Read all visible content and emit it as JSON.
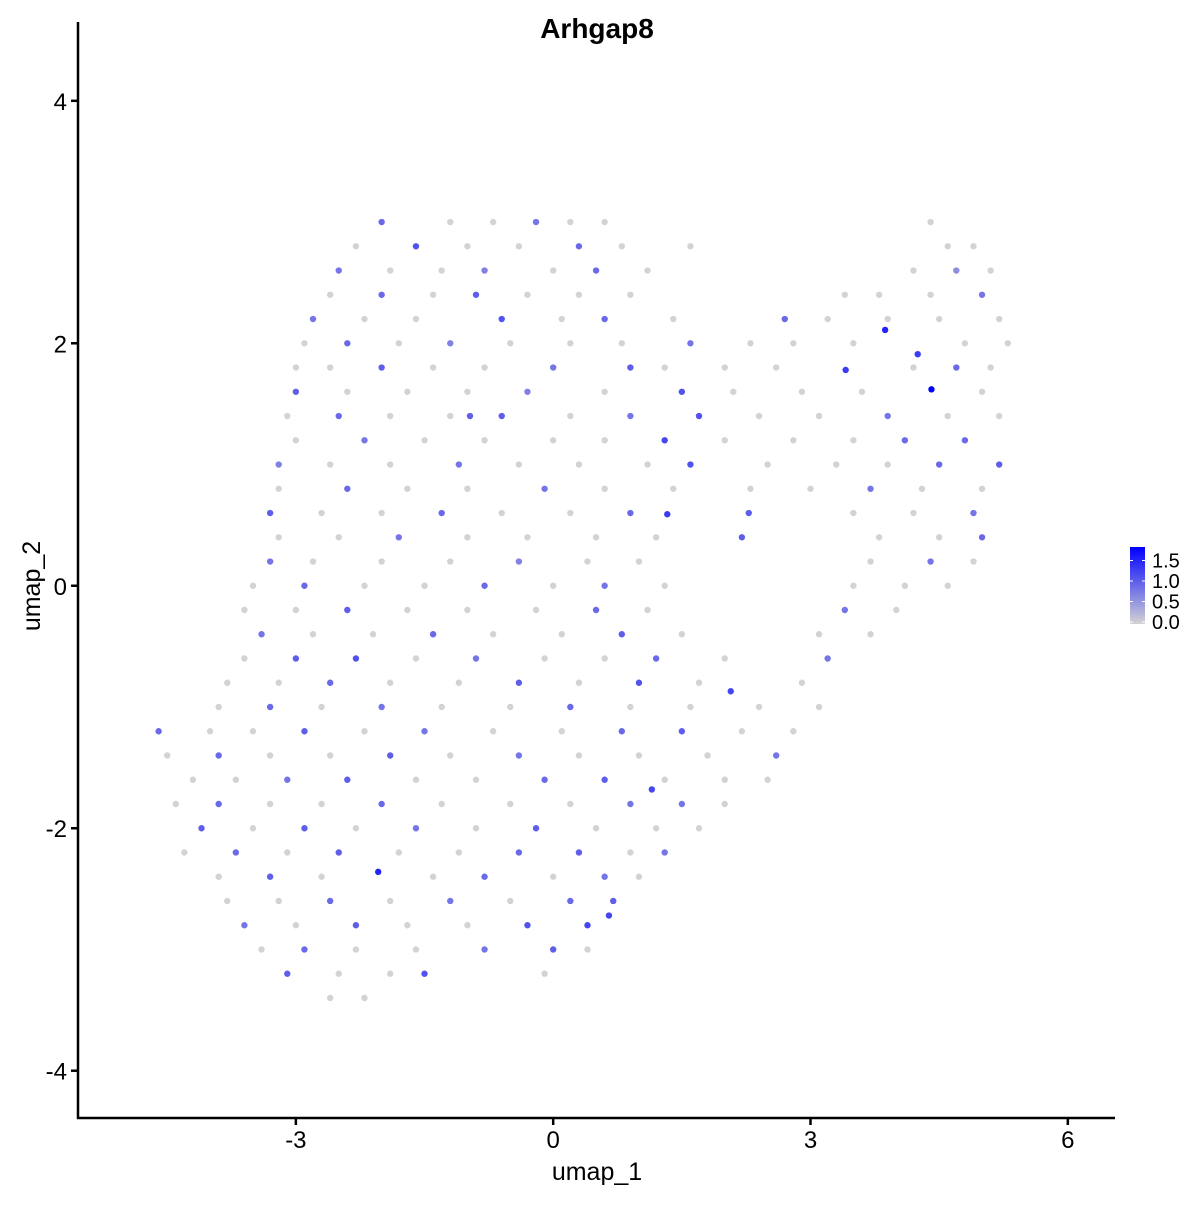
{
  "chart_data": {
    "type": "scatter",
    "title": "Arhgap8",
    "xlabel": "umap_1",
    "ylabel": "umap_2",
    "xlim": [
      -5.54,
      6.55
    ],
    "ylim": [
      -4.39,
      4.65
    ],
    "x_ticks": [
      -3,
      0,
      3,
      6
    ],
    "x_tick_labels": [
      "-3",
      "0",
      "3",
      "6"
    ],
    "y_ticks": [
      -4,
      -2,
      0,
      2,
      4
    ],
    "y_tick_labels": [
      "-4",
      "-2",
      "0",
      "2",
      "4"
    ],
    "grid": false,
    "legend": {
      "placement": "right",
      "type": "colorbar",
      "ticks": [
        0.0,
        0.5,
        1.0,
        1.5
      ],
      "tick_labels": [
        "0.0",
        "0.5",
        "1.0",
        "1.5"
      ],
      "range": [
        0,
        1.8
      ],
      "low_color": "#d3d3d3",
      "high_color": "#0000ff"
    },
    "point_fields": [
      "umap_1",
      "umap_2",
      "expression"
    ],
    "points": [
      [
        -2.0,
        3.0,
        0.9
      ],
      [
        -1.2,
        3.0,
        0
      ],
      [
        -0.7,
        3.0,
        0
      ],
      [
        -0.2,
        3.0,
        0.8
      ],
      [
        0.2,
        3.0,
        0
      ],
      [
        0.6,
        3.0,
        0
      ],
      [
        4.4,
        3.0,
        0
      ],
      [
        -2.3,
        2.8,
        0
      ],
      [
        -1.6,
        2.8,
        1.1
      ],
      [
        -1.0,
        2.8,
        0
      ],
      [
        -0.4,
        2.8,
        0
      ],
      [
        0.3,
        2.8,
        0.9
      ],
      [
        0.8,
        2.8,
        0
      ],
      [
        1.6,
        2.8,
        0
      ],
      [
        4.6,
        2.8,
        0
      ],
      [
        4.9,
        2.8,
        0
      ],
      [
        -2.5,
        2.6,
        0.8
      ],
      [
        -1.9,
        2.6,
        0
      ],
      [
        -1.3,
        2.6,
        0
      ],
      [
        -0.8,
        2.6,
        0.7
      ],
      [
        0.0,
        2.6,
        0
      ],
      [
        0.5,
        2.6,
        0.9
      ],
      [
        1.1,
        2.6,
        0
      ],
      [
        4.2,
        2.6,
        0
      ],
      [
        4.7,
        2.6,
        0.6
      ],
      [
        5.1,
        2.6,
        0
      ],
      [
        -2.6,
        2.4,
        0
      ],
      [
        -2.0,
        2.4,
        0.9
      ],
      [
        -1.4,
        2.4,
        0
      ],
      [
        -0.9,
        2.4,
        1.0
      ],
      [
        -0.3,
        2.4,
        0
      ],
      [
        0.3,
        2.4,
        0
      ],
      [
        0.9,
        2.4,
        0
      ],
      [
        3.4,
        2.4,
        0
      ],
      [
        3.8,
        2.4,
        0
      ],
      [
        4.4,
        2.4,
        0
      ],
      [
        5.0,
        2.4,
        0.8
      ],
      [
        -2.8,
        2.2,
        0.8
      ],
      [
        -2.2,
        2.2,
        0
      ],
      [
        -1.6,
        2.2,
        0
      ],
      [
        -0.6,
        2.2,
        1.1
      ],
      [
        0.1,
        2.2,
        0
      ],
      [
        0.6,
        2.2,
        0.9
      ],
      [
        1.4,
        2.2,
        0
      ],
      [
        2.7,
        2.2,
        0.9
      ],
      [
        3.2,
        2.2,
        0
      ],
      [
        3.9,
        2.2,
        0
      ],
      [
        4.5,
        2.2,
        0
      ],
      [
        5.2,
        2.2,
        0
      ],
      [
        -2.9,
        2.0,
        0
      ],
      [
        -2.4,
        2.0,
        0.9
      ],
      [
        -1.8,
        2.0,
        0
      ],
      [
        -1.2,
        2.0,
        0.7
      ],
      [
        -0.5,
        2.0,
        0
      ],
      [
        0.2,
        2.0,
        0
      ],
      [
        0.8,
        2.0,
        0
      ],
      [
        1.6,
        2.0,
        0.8
      ],
      [
        2.3,
        2.0,
        0
      ],
      [
        2.8,
        2.0,
        0
      ],
      [
        3.5,
        2.0,
        0
      ],
      [
        3.87,
        2.11,
        1.5
      ],
      [
        4.8,
        2.0,
        0
      ],
      [
        5.3,
        2.0,
        0
      ],
      [
        -3.0,
        1.8,
        0
      ],
      [
        -2.6,
        1.8,
        0
      ],
      [
        -2.0,
        1.8,
        1.0
      ],
      [
        -1.4,
        1.8,
        0
      ],
      [
        -0.8,
        1.8,
        0
      ],
      [
        0.0,
        1.8,
        0.8
      ],
      [
        0.9,
        1.8,
        1.0
      ],
      [
        1.3,
        1.8,
        0
      ],
      [
        2.0,
        1.8,
        0
      ],
      [
        2.6,
        1.8,
        0
      ],
      [
        3.41,
        1.78,
        1.3
      ],
      [
        4.25,
        1.91,
        1.3
      ],
      [
        4.2,
        1.8,
        0
      ],
      [
        4.7,
        1.8,
        0.9
      ],
      [
        5.1,
        1.8,
        0
      ],
      [
        -3.0,
        1.6,
        1.0
      ],
      [
        -2.4,
        1.6,
        0
      ],
      [
        -1.7,
        1.6,
        0
      ],
      [
        -1.0,
        1.6,
        0
      ],
      [
        -0.3,
        1.6,
        0.7
      ],
      [
        0.6,
        1.6,
        0
      ],
      [
        1.5,
        1.6,
        1.1
      ],
      [
        2.1,
        1.6,
        0
      ],
      [
        2.9,
        1.6,
        0
      ],
      [
        3.6,
        1.6,
        0
      ],
      [
        4.41,
        1.62,
        1.8
      ],
      [
        5.0,
        1.6,
        0
      ],
      [
        -3.1,
        1.4,
        0
      ],
      [
        -2.5,
        1.4,
        0.9
      ],
      [
        -1.9,
        1.4,
        0
      ],
      [
        -1.2,
        1.4,
        0
      ],
      [
        -0.97,
        1.4,
        1.0
      ],
      [
        -0.6,
        1.4,
        1.0
      ],
      [
        0.2,
        1.4,
        0
      ],
      [
        0.9,
        1.4,
        0.8
      ],
      [
        1.7,
        1.4,
        1.1
      ],
      [
        2.4,
        1.4,
        0
      ],
      [
        3.1,
        1.4,
        0
      ],
      [
        3.9,
        1.4,
        0.8
      ],
      [
        4.6,
        1.4,
        0
      ],
      [
        5.2,
        1.4,
        0
      ],
      [
        -3.0,
        1.2,
        0
      ],
      [
        -2.2,
        1.2,
        0.8
      ],
      [
        -1.5,
        1.2,
        0
      ],
      [
        -0.8,
        1.2,
        0
      ],
      [
        0.0,
        1.2,
        0
      ],
      [
        0.6,
        1.2,
        0
      ],
      [
        1.3,
        1.2,
        1.2
      ],
      [
        2.0,
        1.2,
        0
      ],
      [
        2.8,
        1.2,
        0
      ],
      [
        3.5,
        1.2,
        0
      ],
      [
        4.1,
        1.2,
        0.9
      ],
      [
        4.8,
        1.2,
        0.9
      ],
      [
        -3.2,
        1.0,
        0.7
      ],
      [
        -2.6,
        1.0,
        0
      ],
      [
        -1.9,
        1.0,
        0
      ],
      [
        -1.1,
        1.0,
        0.8
      ],
      [
        -0.4,
        1.0,
        0
      ],
      [
        0.3,
        1.0,
        0
      ],
      [
        1.1,
        1.0,
        0
      ],
      [
        1.6,
        1.0,
        1.1
      ],
      [
        2.5,
        1.0,
        0
      ],
      [
        3.3,
        1.0,
        0
      ],
      [
        3.9,
        1.0,
        0
      ],
      [
        4.5,
        1.0,
        0.9
      ],
      [
        5.2,
        1.0,
        1.0
      ],
      [
        -3.2,
        0.8,
        0
      ],
      [
        -2.4,
        0.8,
        0.9
      ],
      [
        -1.7,
        0.8,
        0
      ],
      [
        -1.0,
        0.8,
        0
      ],
      [
        -0.1,
        0.8,
        0.8
      ],
      [
        0.6,
        0.8,
        0
      ],
      [
        1.4,
        0.8,
        0
      ],
      [
        2.3,
        0.8,
        0
      ],
      [
        3.0,
        0.8,
        0
      ],
      [
        3.7,
        0.8,
        0.8
      ],
      [
        4.3,
        0.8,
        0
      ],
      [
        5.0,
        0.8,
        0
      ],
      [
        -3.3,
        0.6,
        1.0
      ],
      [
        -2.7,
        0.6,
        0
      ],
      [
        -2.0,
        0.6,
        0
      ],
      [
        -1.3,
        0.6,
        0.9
      ],
      [
        -0.6,
        0.6,
        0
      ],
      [
        0.2,
        0.6,
        0
      ],
      [
        0.9,
        0.6,
        0.9
      ],
      [
        1.33,
        0.59,
        1.3
      ],
      [
        2.28,
        0.6,
        1.0
      ],
      [
        3.5,
        0.6,
        0
      ],
      [
        4.2,
        0.6,
        0
      ],
      [
        4.9,
        0.6,
        0.8
      ],
      [
        -3.2,
        0.4,
        0
      ],
      [
        -2.5,
        0.4,
        0
      ],
      [
        -1.8,
        0.4,
        0.8
      ],
      [
        -1.0,
        0.4,
        0
      ],
      [
        -0.3,
        0.4,
        0
      ],
      [
        0.5,
        0.4,
        0
      ],
      [
        1.2,
        0.4,
        0
      ],
      [
        2.2,
        0.4,
        1.0
      ],
      [
        3.8,
        0.4,
        0
      ],
      [
        4.5,
        0.4,
        0
      ],
      [
        5.0,
        0.4,
        0.9
      ],
      [
        -3.3,
        0.2,
        0.8
      ],
      [
        -2.8,
        0.2,
        0
      ],
      [
        -2.0,
        0.2,
        0
      ],
      [
        -1.2,
        0.2,
        0
      ],
      [
        -0.4,
        0.2,
        0.7
      ],
      [
        0.4,
        0.2,
        0
      ],
      [
        1.0,
        0.2,
        0
      ],
      [
        3.7,
        0.2,
        0
      ],
      [
        4.4,
        0.2,
        0.8
      ],
      [
        4.9,
        0.2,
        0
      ],
      [
        -3.5,
        0.0,
        0
      ],
      [
        -2.9,
        0.0,
        0.9
      ],
      [
        -2.2,
        0.0,
        0
      ],
      [
        -1.5,
        0.0,
        0
      ],
      [
        -0.8,
        0.0,
        0.9
      ],
      [
        0.0,
        0.0,
        0
      ],
      [
        0.6,
        0.0,
        0.8
      ],
      [
        1.3,
        0.0,
        0
      ],
      [
        3.5,
        0.0,
        0
      ],
      [
        4.1,
        0.0,
        0
      ],
      [
        4.6,
        0.0,
        0
      ],
      [
        -3.6,
        -0.2,
        0
      ],
      [
        -3.0,
        -0.2,
        0
      ],
      [
        -2.4,
        -0.2,
        1.0
      ],
      [
        -1.7,
        -0.2,
        0
      ],
      [
        -1.0,
        -0.2,
        0
      ],
      [
        -0.2,
        -0.2,
        0
      ],
      [
        0.5,
        -0.2,
        0.9
      ],
      [
        1.1,
        -0.2,
        0
      ],
      [
        3.4,
        -0.2,
        0.8
      ],
      [
        4.0,
        -0.2,
        0
      ],
      [
        -3.4,
        -0.4,
        0.8
      ],
      [
        -2.8,
        -0.4,
        0
      ],
      [
        -2.1,
        -0.4,
        0
      ],
      [
        -1.4,
        -0.4,
        0.9
      ],
      [
        -0.7,
        -0.4,
        0
      ],
      [
        0.1,
        -0.4,
        0
      ],
      [
        0.8,
        -0.4,
        1.0
      ],
      [
        1.5,
        -0.4,
        0
      ],
      [
        3.1,
        -0.4,
        0
      ],
      [
        3.7,
        -0.4,
        0
      ],
      [
        -3.6,
        -0.6,
        0
      ],
      [
        -3.0,
        -0.6,
        1.0
      ],
      [
        -2.3,
        -0.6,
        1.1
      ],
      [
        -1.6,
        -0.6,
        0
      ],
      [
        -0.9,
        -0.6,
        0.8
      ],
      [
        -0.1,
        -0.6,
        0
      ],
      [
        0.6,
        -0.6,
        0
      ],
      [
        1.2,
        -0.6,
        0.9
      ],
      [
        2.0,
        -0.6,
        0
      ],
      [
        3.2,
        -0.6,
        0.8
      ],
      [
        -3.8,
        -0.8,
        0
      ],
      [
        -3.2,
        -0.8,
        0
      ],
      [
        -2.6,
        -0.8,
        0.9
      ],
      [
        -1.9,
        -0.8,
        0
      ],
      [
        -1.1,
        -0.8,
        0
      ],
      [
        -0.4,
        -0.8,
        1.0
      ],
      [
        0.3,
        -0.8,
        0
      ],
      [
        1.0,
        -0.8,
        1.1
      ],
      [
        1.7,
        -0.8,
        0
      ],
      [
        2.07,
        -0.87,
        1.2
      ],
      [
        2.9,
        -0.8,
        0
      ],
      [
        -3.9,
        -1.0,
        0
      ],
      [
        -3.3,
        -1.0,
        0.9
      ],
      [
        -2.7,
        -1.0,
        0
      ],
      [
        -2.0,
        -1.0,
        0.8
      ],
      [
        -1.3,
        -1.0,
        0
      ],
      [
        -0.5,
        -1.0,
        0
      ],
      [
        0.2,
        -1.0,
        0.9
      ],
      [
        0.9,
        -1.0,
        0
      ],
      [
        1.6,
        -1.0,
        0
      ],
      [
        2.4,
        -1.0,
        0
      ],
      [
        3.1,
        -1.0,
        0
      ],
      [
        -4.6,
        -1.2,
        0.9
      ],
      [
        -4.0,
        -1.2,
        0
      ],
      [
        -3.5,
        -1.2,
        0
      ],
      [
        -2.9,
        -1.2,
        1.0
      ],
      [
        -2.2,
        -1.2,
        0
      ],
      [
        -1.5,
        -1.2,
        0.8
      ],
      [
        -0.7,
        -1.2,
        0
      ],
      [
        0.1,
        -1.2,
        0
      ],
      [
        0.8,
        -1.2,
        0.9
      ],
      [
        1.5,
        -1.2,
        1.0
      ],
      [
        2.2,
        -1.2,
        0
      ],
      [
        2.8,
        -1.2,
        0
      ],
      [
        -4.5,
        -1.4,
        0
      ],
      [
        -3.9,
        -1.4,
        0.9
      ],
      [
        -3.3,
        -1.4,
        0
      ],
      [
        -2.6,
        -1.4,
        0
      ],
      [
        -1.9,
        -1.4,
        1.0
      ],
      [
        -1.2,
        -1.4,
        0
      ],
      [
        -0.4,
        -1.4,
        0.8
      ],
      [
        0.3,
        -1.4,
        0
      ],
      [
        1.0,
        -1.4,
        0
      ],
      [
        1.8,
        -1.4,
        0
      ],
      [
        2.6,
        -1.4,
        0.8
      ],
      [
        -4.2,
        -1.6,
        0
      ],
      [
        -3.7,
        -1.6,
        0
      ],
      [
        -3.1,
        -1.6,
        0.8
      ],
      [
        -2.4,
        -1.6,
        1.0
      ],
      [
        -1.6,
        -1.6,
        0
      ],
      [
        -0.9,
        -1.6,
        0
      ],
      [
        -0.1,
        -1.6,
        0.9
      ],
      [
        0.6,
        -1.6,
        1.0
      ],
      [
        1.15,
        -1.68,
        1.2
      ],
      [
        1.3,
        -1.6,
        0
      ],
      [
        2.0,
        -1.6,
        0
      ],
      [
        2.5,
        -1.6,
        0
      ],
      [
        -4.4,
        -1.8,
        0
      ],
      [
        -3.9,
        -1.8,
        0.9
      ],
      [
        -3.3,
        -1.8,
        0
      ],
      [
        -2.7,
        -1.8,
        0
      ],
      [
        -2.0,
        -1.8,
        0.9
      ],
      [
        -1.3,
        -1.8,
        0
      ],
      [
        -0.5,
        -1.8,
        0
      ],
      [
        0.2,
        -1.8,
        0
      ],
      [
        0.9,
        -1.8,
        0.8
      ],
      [
        1.5,
        -1.8,
        0.8
      ],
      [
        2.0,
        -1.8,
        0
      ],
      [
        -4.1,
        -2.0,
        1.0
      ],
      [
        -3.5,
        -2.0,
        0
      ],
      [
        -2.9,
        -2.0,
        1.0
      ],
      [
        -2.3,
        -2.0,
        0
      ],
      [
        -1.6,
        -2.0,
        0.8
      ],
      [
        -0.9,
        -2.0,
        0
      ],
      [
        -0.2,
        -2.0,
        1.0
      ],
      [
        0.5,
        -2.0,
        0
      ],
      [
        1.2,
        -2.0,
        0
      ],
      [
        1.7,
        -2.0,
        0
      ],
      [
        -4.3,
        -2.2,
        0
      ],
      [
        -3.7,
        -2.2,
        0.9
      ],
      [
        -3.1,
        -2.2,
        0
      ],
      [
        -2.5,
        -2.2,
        1.0
      ],
      [
        -1.8,
        -2.2,
        0
      ],
      [
        -1.1,
        -2.2,
        0
      ],
      [
        -0.4,
        -2.2,
        0.9
      ],
      [
        0.3,
        -2.2,
        1.0
      ],
      [
        0.9,
        -2.2,
        0
      ],
      [
        1.3,
        -2.2,
        0.8
      ],
      [
        -3.9,
        -2.4,
        0
      ],
      [
        -3.3,
        -2.4,
        1.0
      ],
      [
        -2.7,
        -2.4,
        0
      ],
      [
        -2.04,
        -2.36,
        1.5
      ],
      [
        -1.4,
        -2.4,
        0
      ],
      [
        -0.8,
        -2.4,
        0.9
      ],
      [
        0.0,
        -2.4,
        0
      ],
      [
        0.6,
        -2.4,
        0.8
      ],
      [
        1.0,
        -2.4,
        0
      ],
      [
        -3.8,
        -2.6,
        0
      ],
      [
        -3.2,
        -2.6,
        0
      ],
      [
        -2.6,
        -2.6,
        0.9
      ],
      [
        -1.9,
        -2.6,
        0
      ],
      [
        -1.2,
        -2.6,
        0.8
      ],
      [
        -0.5,
        -2.6,
        0
      ],
      [
        0.2,
        -2.6,
        0.9
      ],
      [
        0.7,
        -2.6,
        1.0
      ],
      [
        -3.6,
        -2.8,
        0.8
      ],
      [
        -3.0,
        -2.8,
        0
      ],
      [
        -2.3,
        -2.8,
        1.0
      ],
      [
        -1.7,
        -2.8,
        0
      ],
      [
        -1.0,
        -2.8,
        0
      ],
      [
        -0.3,
        -2.8,
        1.1
      ],
      [
        0.4,
        -2.8,
        1.2
      ],
      [
        0.65,
        -2.72,
        1.2
      ],
      [
        -3.4,
        -3.0,
        0
      ],
      [
        -2.9,
        -3.0,
        0.9
      ],
      [
        -2.3,
        -3.0,
        0
      ],
      [
        -1.6,
        -3.0,
        0
      ],
      [
        -0.8,
        -3.0,
        0.8
      ],
      [
        0.0,
        -3.0,
        1.0
      ],
      [
        0.4,
        -3.0,
        0
      ],
      [
        -3.1,
        -3.2,
        1.0
      ],
      [
        -2.5,
        -3.2,
        0
      ],
      [
        -1.9,
        -3.2,
        0
      ],
      [
        -1.5,
        -3.2,
        1.1
      ],
      [
        -0.1,
        -3.2,
        0
      ],
      [
        -2.6,
        -3.4,
        0
      ],
      [
        -2.2,
        -3.4,
        0
      ]
    ]
  }
}
